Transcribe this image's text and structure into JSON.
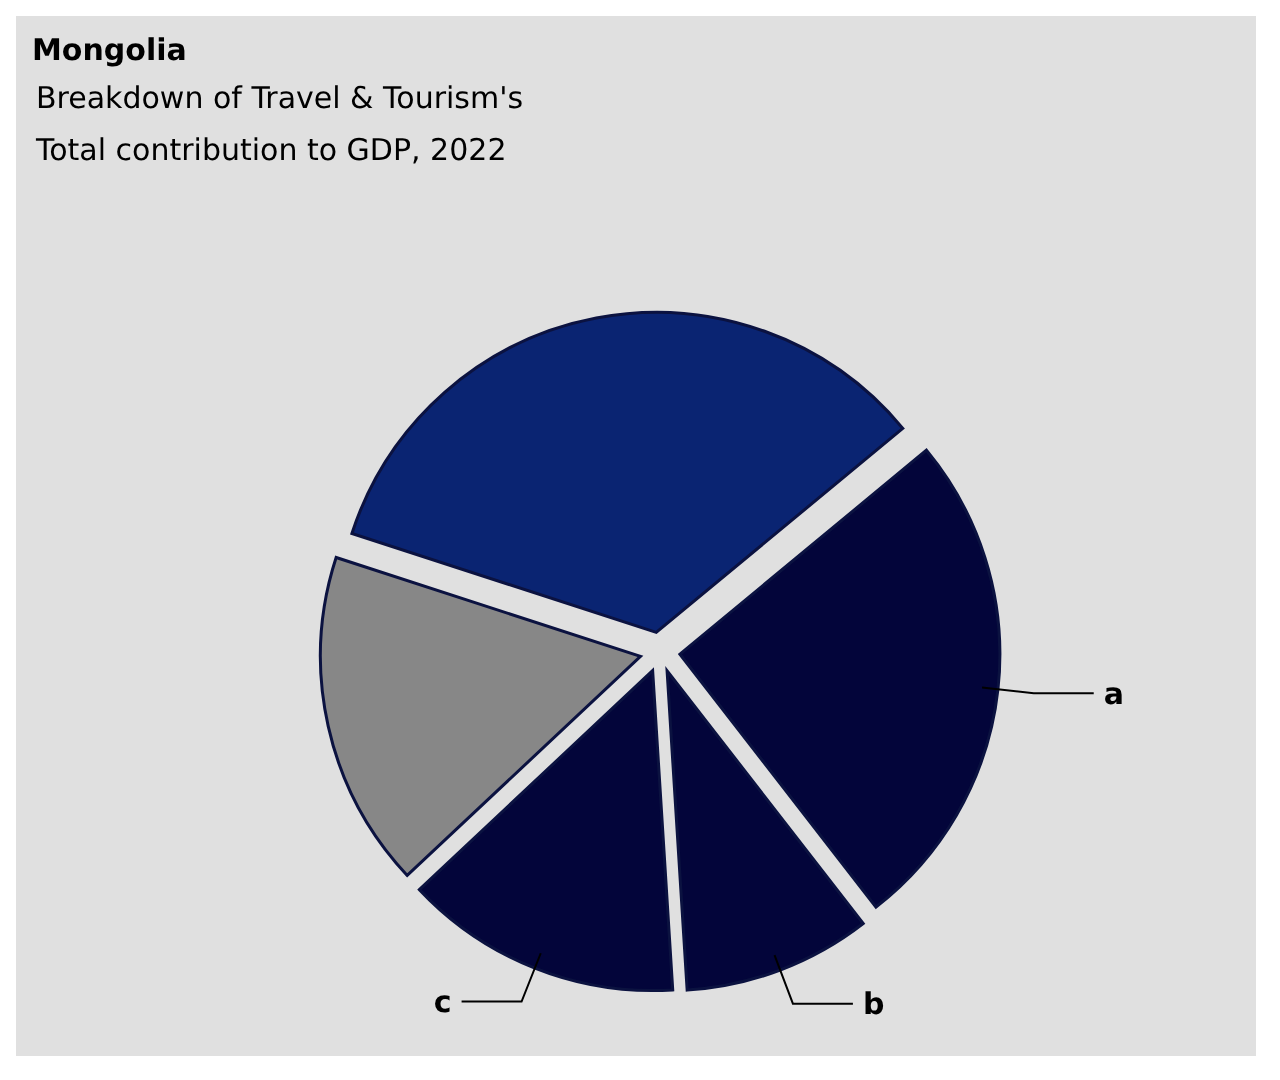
{
  "chart_data": {
    "type": "pie",
    "title": "Mongolia",
    "subtitle": "Breakdown of Travel & Tourism's Total contribution to GDP, 2022",
    "categories": [
      null,
      "a",
      "b",
      "c",
      null
    ],
    "values": [
      34,
      25.5,
      9.5,
      14,
      17
    ],
    "colors": [
      "#0a2472",
      "#03053a",
      "#03053a",
      "#03053a",
      "#878787"
    ]
  }
}
